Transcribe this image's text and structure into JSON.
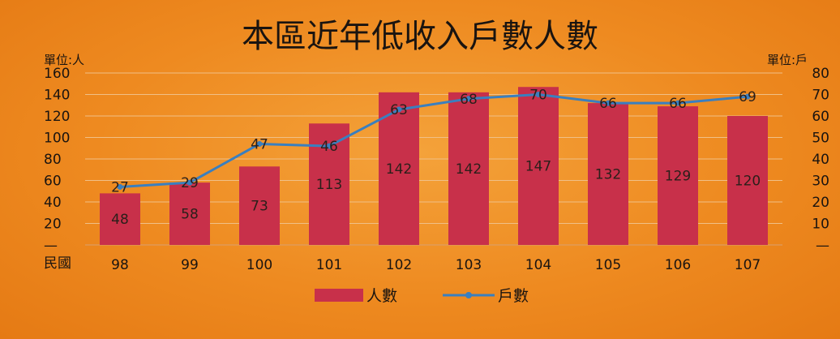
{
  "chart_data": {
    "type": "bar",
    "title": "本區近年低收入戶數人數",
    "left_unit": "單位:人",
    "right_unit": "單位:戶",
    "x_axis_prefix": "民國",
    "categories": [
      "98",
      "99",
      "100",
      "101",
      "102",
      "103",
      "104",
      "105",
      "106",
      "107"
    ],
    "series": [
      {
        "name": "人數",
        "type": "bar",
        "axis": "left",
        "color": "#c8304a",
        "values": [
          48,
          58,
          73,
          113,
          142,
          142,
          147,
          132,
          129,
          120
        ]
      },
      {
        "name": "戶數",
        "type": "line",
        "axis": "right",
        "color": "#3a7fbf",
        "values": [
          27,
          29,
          47,
          46,
          63,
          68,
          70,
          66,
          66,
          69
        ]
      }
    ],
    "y_left": {
      "ylim": [
        0,
        160
      ],
      "ticks": [
        "—",
        "20",
        "40",
        "60",
        "80",
        "100",
        "120",
        "140",
        "160"
      ]
    },
    "y_right": {
      "ylim": [
        0,
        80
      ],
      "ticks": [
        "—",
        "10",
        "20",
        "30",
        "40",
        "50",
        "60",
        "70",
        "80"
      ]
    },
    "grid": true,
    "legend_position": "bottom"
  }
}
